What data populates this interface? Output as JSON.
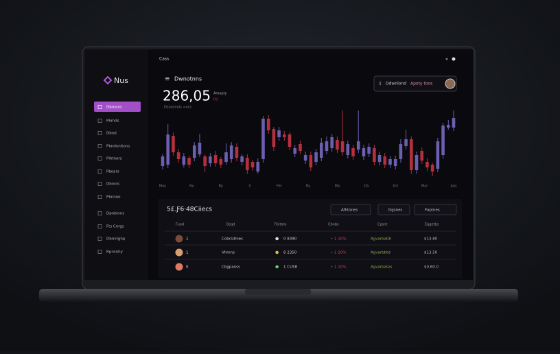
{
  "top_bar": {
    "title": "Cass"
  },
  "sidebar": {
    "logo": "Nus",
    "active_index": 0,
    "items": [
      "Dbmans",
      "Pbmds",
      "Dbnd",
      "Pbndnnitons",
      "Plhtnors",
      "Pboars",
      "Dbnnis",
      "Pbnnoo",
      "Dpnbinns",
      "Fts Cnrgs",
      "Dbmrighp",
      "Rpnsnhy"
    ]
  },
  "header": {
    "title": "Dwnotnns",
    "value": "286,05",
    "change_label": "Amopty",
    "change_sub": "Pd",
    "subtitle": "Dsnsnnnls ∞ncs"
  },
  "actions": {
    "download": "Ddwnlond",
    "apply": "Apoty toos"
  },
  "chart": {
    "type": "candlestick",
    "up_color": "#6b5fb0",
    "down_color": "#b4303f",
    "ylim": [
      0,
      105
    ],
    "x_labels": [
      "Mau",
      "Nu",
      "Ry",
      "Ir",
      "Fel",
      "Ry",
      "Ma",
      "Da",
      "Ori",
      "Mar",
      "Aas"
    ],
    "open": [
      23,
      25,
      67,
      43,
      25,
      35,
      35,
      40,
      37,
      27,
      39,
      33,
      29,
      33,
      51,
      29,
      35,
      29,
      15,
      33,
      92,
      77,
      65,
      69,
      69,
      41,
      55,
      31,
      39,
      29,
      35,
      45,
      49,
      61,
      59,
      39,
      49,
      47,
      37,
      41,
      49,
      29,
      37,
      25,
      23,
      33,
      52,
      62,
      17,
      45,
      29,
      25,
      19,
      39,
      79,
      79
    ],
    "high": [
      41,
      84,
      72,
      48,
      42,
      38,
      58,
      70,
      40,
      42,
      45,
      36,
      56,
      58,
      56,
      40,
      40,
      32,
      34,
      96,
      97,
      80,
      80,
      74,
      72,
      54,
      60,
      44,
      44,
      48,
      64,
      66,
      70,
      66,
      104,
      60,
      54,
      104,
      54,
      56,
      54,
      44,
      42,
      38,
      38,
      62,
      76,
      66,
      44,
      50,
      34,
      28,
      64,
      86,
      90,
      104
    ],
    "low": [
      18,
      20,
      38,
      28,
      21,
      20,
      30,
      36,
      14,
      22,
      22,
      20,
      25,
      28,
      30,
      24,
      12,
      16,
      12,
      28,
      70,
      45,
      60,
      60,
      46,
      36,
      40,
      26,
      16,
      24,
      30,
      40,
      44,
      42,
      38,
      34,
      32,
      42,
      32,
      36,
      24,
      24,
      20,
      20,
      18,
      28,
      47,
      12,
      12,
      26,
      16,
      8,
      14,
      34,
      76,
      74
    ],
    "close": [
      37,
      69,
      43,
      33,
      37,
      25,
      53,
      57,
      23,
      37,
      27,
      25,
      43,
      53,
      35,
      37,
      17,
      21,
      29,
      92,
      75,
      51,
      75,
      65,
      51,
      49,
      45,
      39,
      21,
      43,
      57,
      59,
      65,
      47,
      43,
      55,
      37,
      59,
      49,
      51,
      29,
      39,
      25,
      33,
      33,
      55,
      62,
      17,
      39,
      31,
      21,
      15,
      59,
      82,
      83,
      93
    ]
  },
  "table": {
    "title": "5£.Ƒ6·48Ciiecs",
    "filters": [
      "Afhtones",
      "Dgsnes",
      "Foptnes"
    ],
    "columns": [
      "Fuod",
      "Bsqd",
      "Fbitoto",
      "Cbnbs",
      "Cpsnt",
      "Eqgetbs"
    ],
    "rows": [
      [
        "1",
        "Cobrsdmes",
        "0 8390",
        "• 1 10%",
        "Agvarbatdi",
        "$13.80"
      ],
      [
        "1",
        "Vhmns",
        "8 2350",
        "• 1 10%",
        "Agvarbbtd",
        "$13.50"
      ],
      [
        "0",
        "Cbgpanss",
        "1 CU58",
        "• 1 10%",
        "Agvarbatos",
        "$0.60.0"
      ]
    ]
  }
}
